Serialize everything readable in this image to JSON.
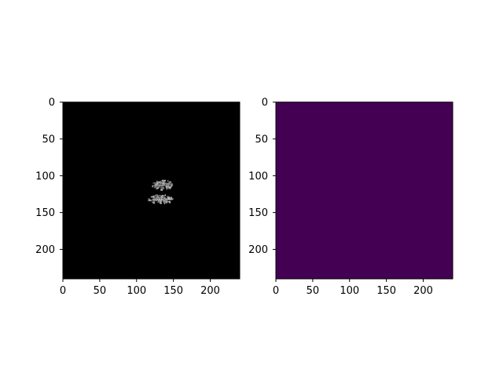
{
  "chart_data": [
    {
      "type": "heatmap",
      "colormap": "gray",
      "background_color": "#000000",
      "x_range": [
        0,
        240
      ],
      "y_range": [
        240,
        0
      ],
      "xticks": [
        0,
        50,
        100,
        150,
        200
      ],
      "yticks": [
        0,
        50,
        100,
        150,
        200
      ],
      "xtick_labels": [
        "0",
        "50",
        "100",
        "150",
        "200"
      ],
      "ytick_labels": [
        "0",
        "50",
        "100",
        "150",
        "200"
      ],
      "blobs": [
        {
          "x": [
            120,
            148
          ],
          "y": [
            104,
            119
          ],
          "value": 0.72
        },
        {
          "x": [
            115,
            148
          ],
          "y": [
            124,
            138
          ],
          "value": 0.8
        }
      ]
    },
    {
      "type": "heatmap",
      "colormap": "viridis",
      "fill_color": "#440154",
      "x_range": [
        0,
        240
      ],
      "y_range": [
        240,
        0
      ],
      "xticks": [
        0,
        50,
        100,
        150,
        200
      ],
      "yticks": [
        0,
        50,
        100,
        150,
        200
      ],
      "xtick_labels": [
        "0",
        "50",
        "100",
        "150",
        "200"
      ],
      "ytick_labels": [
        "0",
        "50",
        "100",
        "150",
        "200"
      ]
    }
  ]
}
